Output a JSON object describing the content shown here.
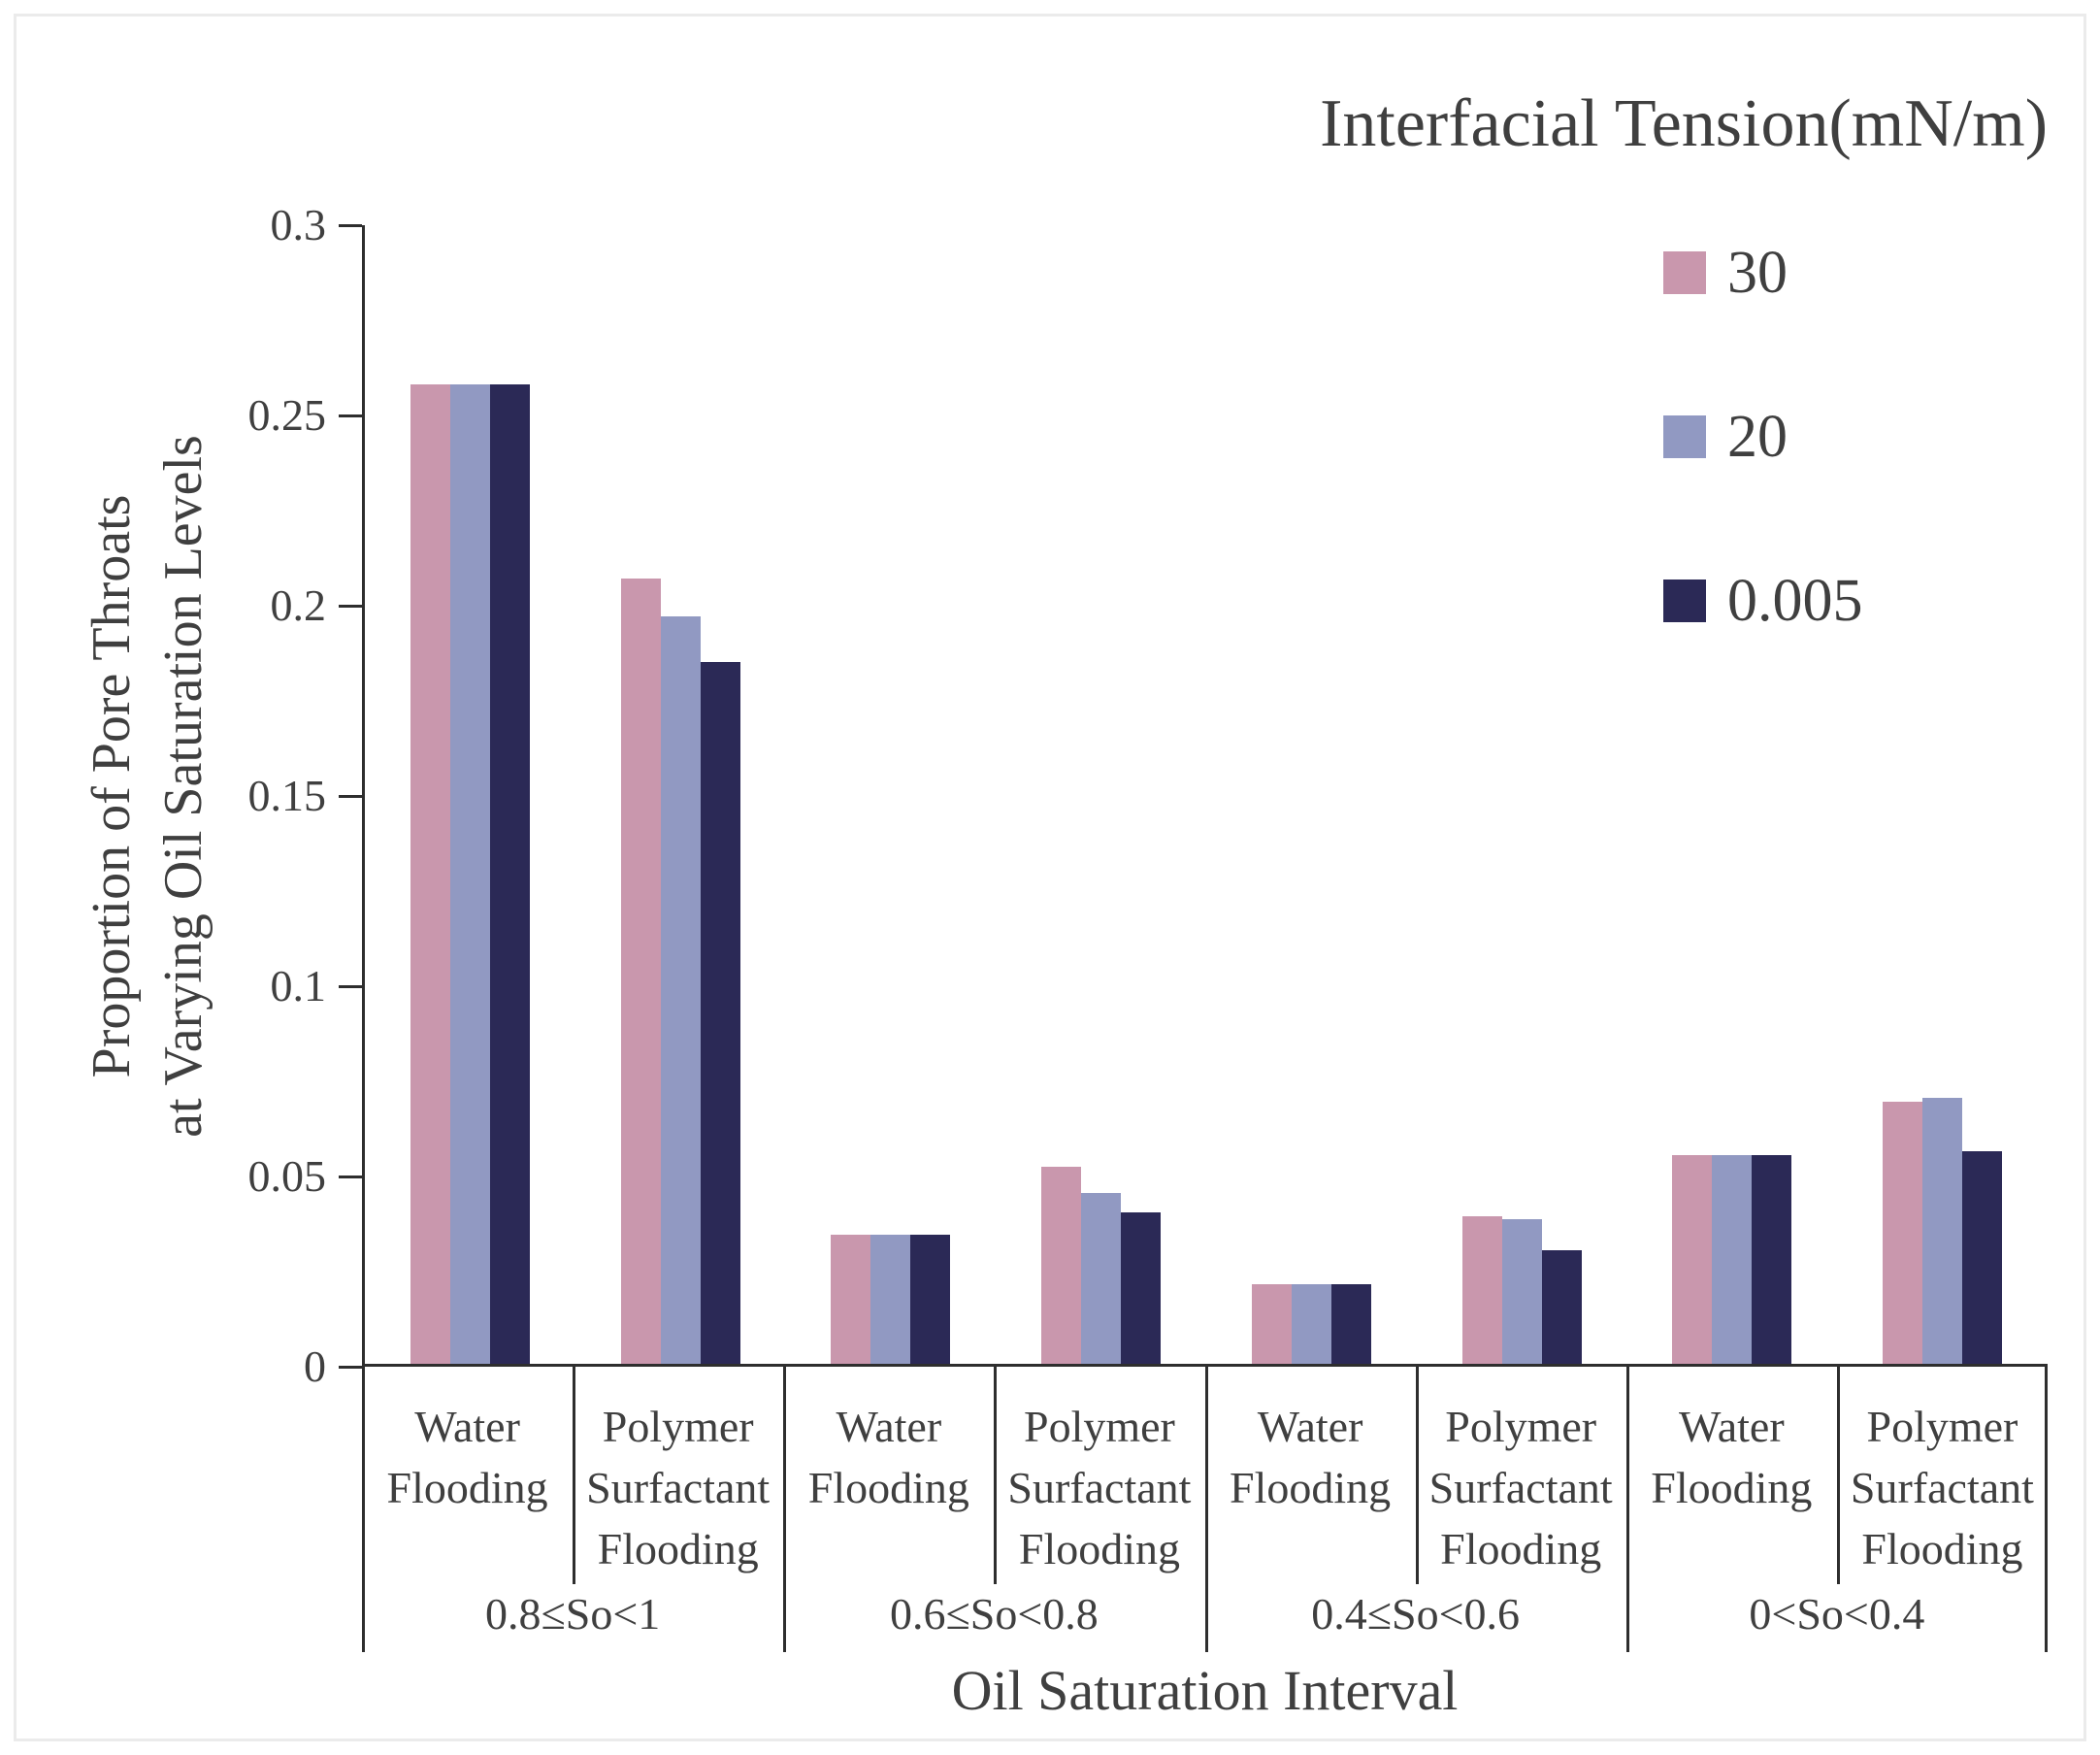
{
  "figure": {
    "background": "#ffffff",
    "frame_color": "#ebebeb",
    "axis_color": "#2e2e2e",
    "text_color": "#3f3f3f"
  },
  "chart_data": {
    "type": "bar",
    "title": "",
    "xlabel": "Oil Saturation Interval",
    "ylabel": "Proportion of Pore Throats at Varying Oil Saturation Levels",
    "ylabel_lines": [
      "Proportion of Pore Throats",
      "at Varying Oil Saturation Levels"
    ],
    "legend_title": "Interfacial Tension(mN/m)",
    "legend_position": "top-right",
    "grid": false,
    "ylim": [
      0,
      0.3
    ],
    "yticks": [
      {
        "v": 0.3,
        "label": "0.3"
      },
      {
        "v": 0.25,
        "label": "0.25"
      },
      {
        "v": 0.2,
        "label": "0.2"
      },
      {
        "v": 0.15,
        "label": "0.15"
      },
      {
        "v": 0.1,
        "label": "0.1"
      },
      {
        "v": 0.05,
        "label": "0.05"
      },
      {
        "v": 0,
        "label": "0"
      }
    ],
    "series": [
      {
        "name": "30",
        "color": "#C997AD"
      },
      {
        "name": "20",
        "color": "#9199C2"
      },
      {
        "name": "0.005",
        "color": "#2B2956"
      }
    ],
    "groups": [
      {
        "interval": "0.8≤So<1",
        "cells": [
          {
            "label_lines": [
              "Water",
              "Flooding"
            ],
            "label": "Water Flooding",
            "values": [
              0.258,
              0.258,
              0.258
            ]
          },
          {
            "label_lines": [
              "Polymer",
              "Surfactant",
              "Flooding"
            ],
            "label": "Polymer Surfactant Flooding",
            "values": [
              0.207,
              0.197,
              0.185
            ]
          }
        ]
      },
      {
        "interval": "0.6≤So<0.8",
        "cells": [
          {
            "label_lines": [
              "Water",
              "Flooding"
            ],
            "label": "Water Flooding",
            "values": [
              0.034,
              0.034,
              0.034
            ]
          },
          {
            "label_lines": [
              "Polymer",
              "Surfactant",
              "Flooding"
            ],
            "label": "Polymer Surfactant Flooding",
            "values": [
              0.052,
              0.045,
              0.04
            ]
          }
        ]
      },
      {
        "interval": "0.4≤So<0.6",
        "cells": [
          {
            "label_lines": [
              "Water",
              "Flooding"
            ],
            "label": "Water Flooding",
            "values": [
              0.021,
              0.021,
              0.021
            ]
          },
          {
            "label_lines": [
              "Polymer",
              "Surfactant",
              "Flooding"
            ],
            "label": "Polymer Surfactant Flooding",
            "values": [
              0.039,
              0.038,
              0.03
            ]
          }
        ]
      },
      {
        "interval": "0<So<0.4",
        "cells": [
          {
            "label_lines": [
              "Water",
              "Flooding"
            ],
            "label": "Water Flooding",
            "values": [
              0.055,
              0.055,
              0.055
            ]
          },
          {
            "label_lines": [
              "Polymer",
              "Surfactant",
              "Flooding"
            ],
            "label": "Polymer Surfactant Flooding",
            "values": [
              0.069,
              0.07,
              0.056
            ]
          }
        ]
      }
    ]
  }
}
